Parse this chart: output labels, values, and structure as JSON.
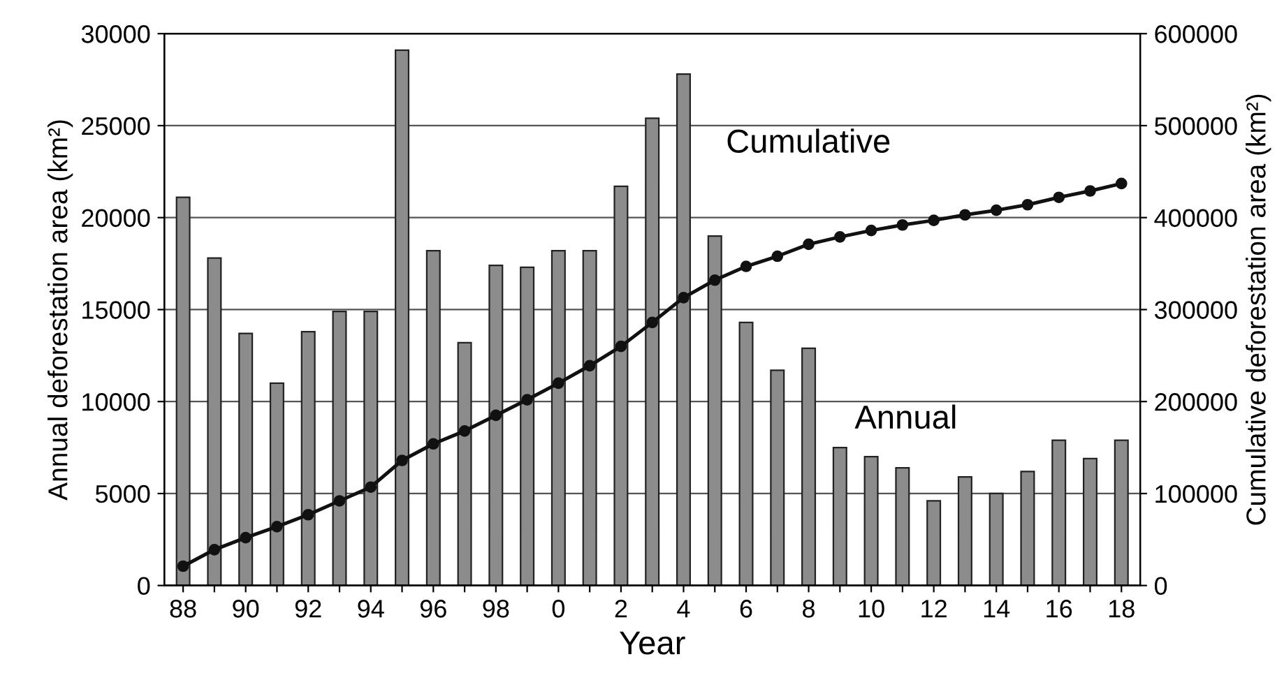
{
  "chart_data": {
    "type": "bar",
    "xlabel": "Year",
    "ylabel": "Annual deforestation area (km²)",
    "y2label": "Cumulative deforestation area (km²)",
    "categories": [
      "88",
      null,
      "90",
      null,
      "92",
      null,
      "94",
      null,
      "96",
      null,
      "98",
      null,
      "0",
      null,
      "2",
      null,
      "4",
      null,
      "6",
      null,
      "8",
      null,
      "10",
      null,
      "12",
      null,
      "14",
      null,
      "16",
      null,
      "18"
    ],
    "series": [
      {
        "color": "#8c8c8c",
        "values": [
          21100,
          17800,
          13700,
          11000,
          13800,
          14900,
          14900,
          29100,
          18200,
          13200,
          17400,
          17300,
          18200,
          18200,
          21700,
          25400,
          27800,
          19000,
          14300,
          11700,
          12900,
          7500,
          7000,
          6400,
          4600,
          5900,
          5000,
          6200,
          7900,
          6900,
          7900
        ]
      },
      {
        "type": "line",
        "axis": "y2",
        "color": "#111111",
        "marker": "circle",
        "values": [
          21000,
          39000,
          52000,
          64000,
          77000,
          92000,
          107000,
          136000,
          154000,
          168000,
          185000,
          202000,
          220000,
          239000,
          260000,
          286000,
          313000,
          332000,
          347000,
          358000,
          371000,
          379000,
          386000,
          392000,
          397000,
          403000,
          408000,
          414000,
          422000,
          429000,
          437000
        ]
      }
    ],
    "ylim": [
      0,
      30000
    ],
    "yticks": [
      0,
      5000,
      10000,
      15000,
      20000,
      25000,
      30000
    ],
    "y2lim": [
      0,
      600000
    ],
    "y2ticks": [
      0,
      100000,
      200000,
      300000,
      400000,
      500000,
      600000
    ],
    "grid": "y",
    "legend": false,
    "annotations": [
      "Cumulative",
      "Annual"
    ]
  }
}
